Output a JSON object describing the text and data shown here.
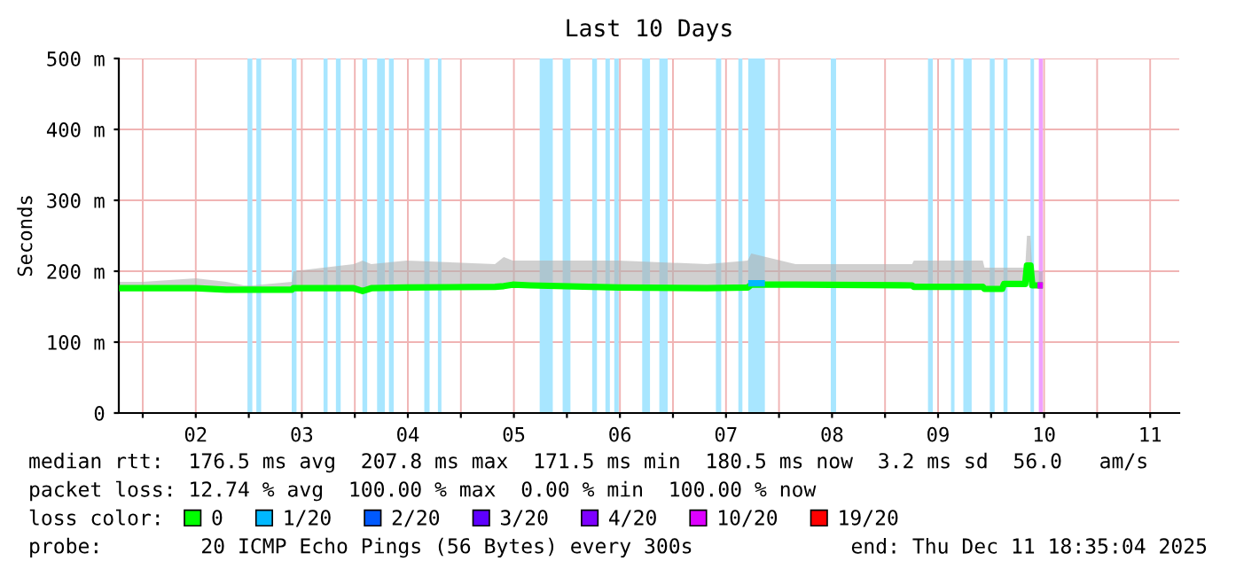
{
  "chart_data": {
    "type": "line",
    "title": "Last 10 Days",
    "ylabel": "Seconds",
    "xlim": [
      "2025-12-01T18:35",
      "2025-12-11T18:35"
    ],
    "xticks": [
      {
        "value": "2025-12-02T00:00",
        "label": null
      },
      {
        "value": "2025-12-02T12:00",
        "label": "02"
      },
      {
        "value": "2025-12-03T00:00",
        "label": null
      },
      {
        "value": "2025-12-03T12:00",
        "label": "03"
      },
      {
        "value": "2025-12-04T00:00",
        "label": null
      },
      {
        "value": "2025-12-04T12:00",
        "label": "04"
      },
      {
        "value": "2025-12-05T00:00",
        "label": null
      },
      {
        "value": "2025-12-05T12:00",
        "label": "05"
      },
      {
        "value": "2025-12-06T00:00",
        "label": null
      },
      {
        "value": "2025-12-06T12:00",
        "label": "06"
      },
      {
        "value": "2025-12-07T00:00",
        "label": null
      },
      {
        "value": "2025-12-07T12:00",
        "label": "07"
      },
      {
        "value": "2025-12-08T00:00",
        "label": null
      },
      {
        "value": "2025-12-08T12:00",
        "label": "08"
      },
      {
        "value": "2025-12-09T00:00",
        "label": null
      },
      {
        "value": "2025-12-09T12:00",
        "label": "09"
      },
      {
        "value": "2025-12-10T00:00",
        "label": null
      },
      {
        "value": "2025-12-10T12:00",
        "label": "10"
      },
      {
        "value": "2025-12-11T00:00",
        "label": null
      },
      {
        "value": "2025-12-11T12:00",
        "label": "11"
      }
    ],
    "ylim": [
      0,
      500
    ],
    "yticks": [
      {
        "value": 0,
        "label": "0"
      },
      {
        "value": 100,
        "label": "100 m"
      },
      {
        "value": 200,
        "label": "200 m"
      },
      {
        "value": 300,
        "label": "300 m"
      },
      {
        "value": 400,
        "label": "400 m"
      },
      {
        "value": 500,
        "label": "500 m"
      }
    ],
    "grid": true,
    "legend": "bottom",
    "legend_title": "loss color:",
    "series": [
      {
        "name": "0",
        "color": "#00ff00",
        "x": [
          "2025-12-01T18:40",
          "2025-12-02T00:00",
          "2025-12-02T12:00",
          "2025-12-02T18:55",
          "2025-12-02T22:55",
          "2025-12-03T00:55",
          "2025-12-03T09:45",
          "2025-12-03T10:05",
          "2025-12-03T23:45",
          "2025-12-04T01:45",
          "2025-12-04T03:43",
          "2025-12-04T11:43",
          "2025-12-05T07:43",
          "2025-12-05T09:43",
          "2025-12-05T11:43",
          "2025-12-05T15:43",
          "2025-12-06T11:43",
          "2025-12-07T07:43",
          "2025-12-07T16:55",
          "2025-12-07T17:43",
          "2025-12-08T03:43",
          "2025-12-09T06:07",
          "2025-12-09T06:31",
          "2025-12-09T22:07",
          "2025-12-09T22:31",
          "2025-12-10T02:31",
          "2025-12-10T02:55",
          "2025-12-10T07:43",
          "2025-12-10T08:07",
          "2025-12-10T08:55",
          "2025-12-10T09:19",
          "2025-12-10T11:43"
        ],
        "values": [
          176,
          176,
          176,
          174,
          174,
          174,
          174,
          176,
          176,
          172,
          176,
          177,
          178,
          179,
          181,
          180,
          177,
          176,
          177,
          181,
          181,
          180,
          178,
          178,
          175,
          175,
          182,
          182,
          208,
          208,
          180,
          180
        ],
        "lower": [
          176,
          176,
          176,
          174,
          174,
          174,
          174,
          176,
          176,
          172,
          176,
          177,
          178,
          179,
          181,
          180,
          177,
          176,
          177,
          181,
          181,
          180,
          178,
          178,
          175,
          175,
          182,
          182,
          208,
          208,
          180,
          180
        ],
        "upper": [
          185,
          185,
          190,
          185,
          180,
          180,
          185,
          200,
          210,
          215,
          210,
          215,
          210,
          220,
          215,
          215,
          215,
          210,
          215,
          225,
          210,
          210,
          215,
          215,
          205,
          205,
          205,
          205,
          250,
          250,
          200,
          200
        ]
      },
      {
        "name": "1/20",
        "color": "#00b8ff",
        "x": [
          "2025-12-07T17:02",
          "2025-12-07T20:48"
        ],
        "values": [
          183,
          183
        ]
      },
      {
        "name": "2/20",
        "color": "#0059ff"
      },
      {
        "name": "3/20",
        "color": "#5e00ff"
      },
      {
        "name": "4/20",
        "color": "#7e00ff"
      },
      {
        "name": "10/20",
        "color": "#dd00ff",
        "x": [
          "2025-12-10T10:30",
          "2025-12-10T11:43"
        ],
        "values": [
          180,
          180
        ]
      },
      {
        "name": "19/20",
        "color": "#ff0000"
      }
    ],
    "bands": [
      {
        "axis": "x",
        "from": "2025-12-02T23:43",
        "to": "2025-12-03T00:48",
        "color": "#a8e6ff"
      },
      {
        "axis": "x",
        "from": "2025-12-03T01:43",
        "to": "2025-12-03T02:48",
        "color": "#a8e6ff"
      },
      {
        "axis": "x",
        "from": "2025-12-03T09:43",
        "to": "2025-12-03T10:48",
        "color": "#a8e6ff"
      },
      {
        "axis": "x",
        "from": "2025-12-03T16:55",
        "to": "2025-12-03T17:50",
        "color": "#a8e6ff"
      },
      {
        "axis": "x",
        "from": "2025-12-03T19:43",
        "to": "2025-12-03T20:48",
        "color": "#a8e6ff"
      },
      {
        "axis": "x",
        "from": "2025-12-04T01:43",
        "to": "2025-12-04T02:48",
        "color": "#a8e6ff"
      },
      {
        "axis": "x",
        "from": "2025-12-04T05:02",
        "to": "2025-12-04T06:48",
        "color": "#a8e6ff"
      },
      {
        "axis": "x",
        "from": "2025-12-04T07:43",
        "to": "2025-12-04T08:48",
        "color": "#a8e6ff"
      },
      {
        "axis": "x",
        "from": "2025-12-04T15:43",
        "to": "2025-12-04T16:55",
        "color": "#a8e6ff"
      },
      {
        "axis": "x",
        "from": "2025-12-04T18:48",
        "to": "2025-12-04T19:36",
        "color": "#a8e6ff"
      },
      {
        "axis": "x",
        "from": "2025-12-05T17:50",
        "to": "2025-12-05T20:48",
        "color": "#a8e6ff"
      },
      {
        "axis": "x",
        "from": "2025-12-05T23:02",
        "to": "2025-12-06T00:48",
        "color": "#a8e6ff"
      },
      {
        "axis": "x",
        "from": "2025-12-06T05:43",
        "to": "2025-12-06T06:48",
        "color": "#a8e6ff"
      },
      {
        "axis": "x",
        "from": "2025-12-06T08:43",
        "to": "2025-12-06T09:43",
        "color": "#a8e6ff"
      },
      {
        "axis": "x",
        "from": "2025-12-06T10:43",
        "to": "2025-12-06T11:43",
        "color": "#a8e6ff"
      },
      {
        "axis": "x",
        "from": "2025-12-06T17:02",
        "to": "2025-12-06T18:48",
        "color": "#a8e6ff"
      },
      {
        "axis": "x",
        "from": "2025-12-06T20:55",
        "to": "2025-12-06T22:48",
        "color": "#a8e6ff"
      },
      {
        "axis": "x",
        "from": "2025-12-07T09:43",
        "to": "2025-12-07T10:55",
        "color": "#a8e6ff"
      },
      {
        "axis": "x",
        "from": "2025-12-07T14:48",
        "to": "2025-12-07T15:43",
        "color": "#a8e6ff"
      },
      {
        "axis": "x",
        "from": "2025-12-07T17:02",
        "to": "2025-12-07T20:48",
        "color": "#a8e6ff"
      },
      {
        "axis": "x",
        "from": "2025-12-08T11:43",
        "to": "2025-12-08T12:55",
        "color": "#a8e6ff"
      },
      {
        "axis": "x",
        "from": "2025-12-09T09:43",
        "to": "2025-12-09T10:48",
        "color": "#a8e6ff"
      },
      {
        "axis": "x",
        "from": "2025-12-09T14:55",
        "to": "2025-12-09T15:43",
        "color": "#a8e6ff"
      },
      {
        "axis": "x",
        "from": "2025-12-09T17:43",
        "to": "2025-12-09T19:36",
        "color": "#a8e6ff"
      },
      {
        "axis": "x",
        "from": "2025-12-09T23:43",
        "to": "2025-12-10T00:48",
        "color": "#a8e6ff"
      },
      {
        "axis": "x",
        "from": "2025-12-10T02:48",
        "to": "2025-12-10T03:43",
        "color": "#a8e6ff"
      },
      {
        "axis": "x",
        "from": "2025-12-10T08:55",
        "to": "2025-12-10T09:43",
        "color": "#a8e6ff"
      },
      {
        "axis": "x",
        "from": "2025-12-10T10:48",
        "to": "2025-12-10T11:43",
        "color": "#f0a0ff"
      }
    ],
    "annotations": [
      "median rtt:  176.5 ms avg  207.8 ms max  171.5 ms min  180.5 ms now  3.2 ms sd  56.0   am/s",
      "packet loss: 12.74 % avg  100.00 % max  0.00 % min  100.00 % now",
      "probe:        20 ICMP Echo Pings (56 Bytes) every 300s",
      "end: Thu Dec 11 18:35:04 2025"
    ]
  }
}
